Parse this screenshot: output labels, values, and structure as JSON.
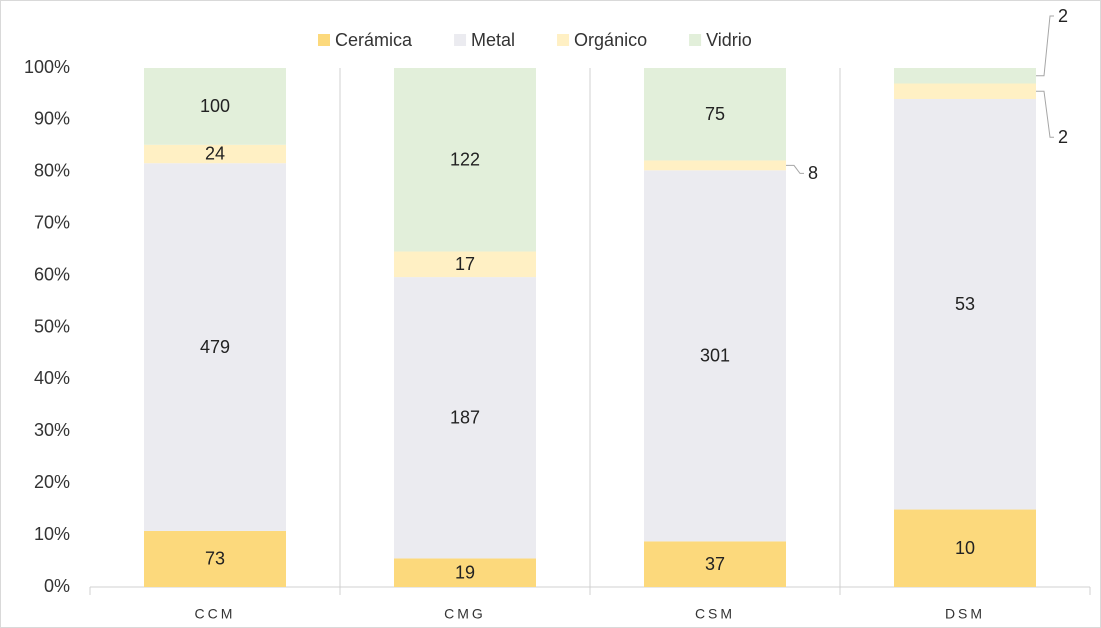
{
  "chart_data": {
    "type": "bar",
    "stacking": "percent",
    "categories": [
      "CCM",
      "CMG",
      "CSM",
      "DSM"
    ],
    "series": [
      {
        "name": "Cerámica",
        "color": "#fcd97c",
        "values": [
          73,
          19,
          37,
          10
        ]
      },
      {
        "name": "Metal",
        "color": "#ebebf0",
        "values": [
          479,
          187,
          301,
          53
        ]
      },
      {
        "name": "Orgánico",
        "color": "#fff0c4",
        "values": [
          24,
          17,
          8,
          2
        ]
      },
      {
        "name": "Vidrio",
        "color": "#e2efda",
        "values": [
          100,
          122,
          75,
          2
        ]
      }
    ],
    "ylim": [
      0,
      100
    ],
    "yticks": [
      {
        "value": 0,
        "label": "0%"
      },
      {
        "value": 10,
        "label": "10%"
      },
      {
        "value": 20,
        "label": "20%"
      },
      {
        "value": 30,
        "label": "30%"
      },
      {
        "value": 40,
        "label": "40%"
      },
      {
        "value": 50,
        "label": "50%"
      },
      {
        "value": 60,
        "label": "60%"
      },
      {
        "value": 70,
        "label": "70%"
      },
      {
        "value": 80,
        "label": "80%"
      },
      {
        "value": 90,
        "label": "90%"
      },
      {
        "value": 100,
        "label": "100%"
      }
    ],
    "legend": "top",
    "grid": false
  }
}
